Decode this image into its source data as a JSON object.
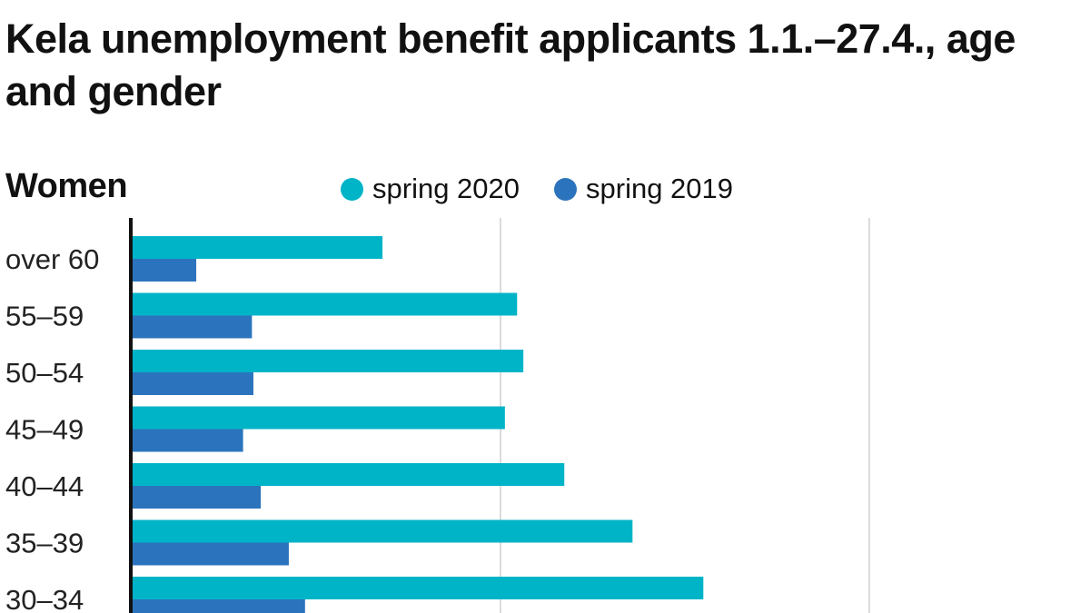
{
  "title": "Kela unemployment benefit applicants 1.1.–27.4., age and gender",
  "panel_label": "Women",
  "legend": [
    {
      "label": "spring 2020",
      "color": "#00b4c8"
    },
    {
      "label": "spring 2019",
      "color": "#2b74bd"
    }
  ],
  "chart_data": {
    "type": "bar",
    "orientation": "horizontal",
    "title": "Kela unemployment benefit applicants 1.1.–27.4., age and gender",
    "panel": "Women",
    "categories": [
      "over 60",
      "55–59",
      "50–54",
      "45–49",
      "40–44",
      "35–39",
      "30–34"
    ],
    "series": [
      {
        "name": "spring 2020",
        "color": "#00b4c8",
        "values": [
          6800,
          10450,
          10620,
          10120,
          11730,
          13580,
          15500
        ]
      },
      {
        "name": "spring 2019",
        "color": "#2b74bd",
        "values": [
          1750,
          3260,
          3300,
          3020,
          3500,
          4260,
          4700
        ]
      }
    ],
    "xlim": [
      0,
      20000
    ],
    "x_gridlines": [
      10000,
      20000
    ],
    "x_tick_labels_visible": false,
    "grid": true,
    "legend_position": "top"
  }
}
